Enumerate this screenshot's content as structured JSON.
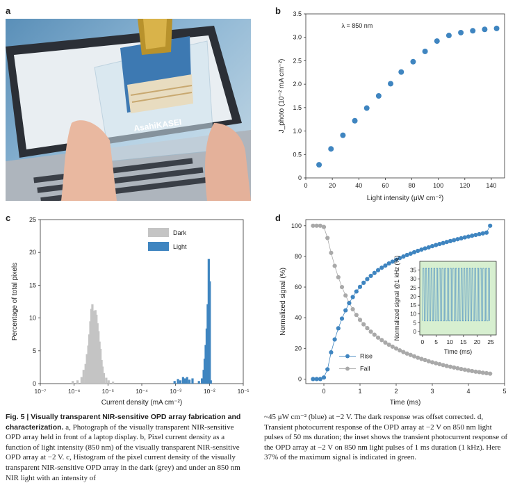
{
  "panels": {
    "a": "a",
    "b": "b",
    "c": "c",
    "d": "d"
  },
  "photo": {
    "logo_text": "AsahiKASEI"
  },
  "chart_data": [
    {
      "id": "b",
      "type": "scatter",
      "annotation": "λ = 850 nm",
      "xlabel": "Light intensity (μW cm⁻²)",
      "ylabel": "J_photo (10⁻² mA cm⁻²)",
      "xlim": [
        0,
        150
      ],
      "ylim": [
        0,
        3.5
      ],
      "xticks": [
        0,
        20,
        40,
        60,
        80,
        100,
        120,
        140
      ],
      "yticks": [
        0,
        0.5,
        1.0,
        1.5,
        2.0,
        2.5,
        3.0,
        3.5
      ],
      "ytick_labels": [
        "0",
        "0.5",
        "1.0",
        "1.5",
        "2.0",
        "2.5",
        "3.0",
        "3.5"
      ],
      "color": "#3f85c0",
      "x": [
        10,
        19,
        28,
        37,
        46,
        55,
        64,
        72,
        81,
        90,
        99,
        108,
        117,
        126,
        135,
        144
      ],
      "y": [
        0.28,
        0.62,
        0.91,
        1.22,
        1.49,
        1.75,
        2.01,
        2.26,
        2.48,
        2.7,
        2.92,
        3.04,
        3.1,
        3.14,
        3.17,
        3.19
      ]
    },
    {
      "id": "c",
      "type": "histogram",
      "xlabel": "Current density (mA cm⁻²)",
      "ylabel": "Percentage of total pixels",
      "xscale": "log",
      "xlim_exp": [
        -7,
        -1
      ],
      "ylim": [
        0,
        25
      ],
      "yticks": [
        0,
        5,
        10,
        15,
        20,
        25
      ],
      "xticks": [
        "10⁻⁷",
        "10⁻⁶",
        "10⁻⁵",
        "10⁻⁴",
        "10⁻³",
        "10⁻²",
        "10⁻¹"
      ],
      "legend": [
        {
          "name": "Dark",
          "color": "#c4c4c4"
        },
        {
          "name": "Light",
          "color": "#3f85c0"
        }
      ],
      "series": [
        {
          "name": "Dark",
          "color": "#c4c4c4",
          "bin_log10": [
            -6.04,
            -5.9,
            -5.78,
            -5.72,
            -5.66,
            -5.62,
            -5.58,
            -5.55,
            -5.52,
            -5.49,
            -5.46,
            -5.43,
            -5.4,
            -5.37,
            -5.34,
            -5.31,
            -5.28,
            -5.25,
            -5.22,
            -5.19,
            -5.16,
            -5.12,
            -5.05,
            -4.98,
            -4.85
          ],
          "values": [
            0.4,
            0.5,
            1.0,
            2.1,
            3.0,
            4.5,
            5.8,
            7.5,
            9.5,
            11.4,
            12.1,
            11.1,
            10.4,
            11.2,
            10.5,
            9.2,
            8.0,
            6.4,
            5.3,
            3.6,
            2.6,
            1.6,
            0.9,
            0.5,
            0.3
          ]
        },
        {
          "name": "Light",
          "color": "#3f85c0",
          "bin_log10": [
            -3.03,
            -2.93,
            -2.86,
            -2.78,
            -2.72,
            -2.66,
            -2.59,
            -2.5,
            -2.31,
            -2.22,
            -2.17,
            -2.14,
            -2.11,
            -2.08,
            -2.05,
            -2.02,
            -1.99,
            -1.96
          ],
          "values": [
            0.4,
            0.7,
            0.5,
            1.0,
            0.8,
            1.0,
            0.6,
            0.8,
            0.4,
            0.8,
            2.1,
            3.8,
            5.9,
            8.4,
            12.1,
            19.0,
            15.6,
            0.5
          ]
        }
      ]
    },
    {
      "id": "d",
      "type": "line",
      "xlabel": "Time (ms)",
      "ylabel": "Normalized signal (%)",
      "xlim": [
        -0.5,
        5
      ],
      "ylim": [
        -3,
        104
      ],
      "xticks": [
        0,
        1,
        2,
        3,
        4,
        5
      ],
      "yticks": [
        0,
        20,
        40,
        60,
        80,
        100
      ],
      "series": [
        {
          "name": "Rise",
          "color": "#3f85c0",
          "x": [
            -0.3,
            -0.2,
            -0.1,
            0.0,
            0.1,
            0.2,
            0.3,
            0.4,
            0.5,
            0.6,
            0.7,
            0.8,
            0.9,
            1.0,
            1.1,
            1.2,
            1.3,
            1.4,
            1.5,
            1.6,
            1.7,
            1.8,
            1.9,
            2.0,
            2.1,
            2.2,
            2.3,
            2.4,
            2.5,
            2.6,
            2.7,
            2.8,
            2.9,
            3.0,
            3.1,
            3.2,
            3.3,
            3.4,
            3.5,
            3.6,
            3.7,
            3.8,
            3.9,
            4.0,
            4.1,
            4.2,
            4.3,
            4.4,
            4.5,
            4.6
          ],
          "y": [
            0.0,
            0.0,
            0.0,
            1.0,
            6.3,
            17.4,
            25.8,
            33.1,
            39.4,
            44.8,
            49.5,
            53.5,
            57.1,
            60.1,
            62.8,
            65.2,
            67.3,
            69.2,
            71.0,
            72.6,
            74.0,
            75.4,
            76.6,
            77.8,
            78.9,
            79.9,
            80.9,
            81.8,
            82.7,
            83.6,
            84.4,
            85.2,
            85.9,
            86.7,
            87.4,
            88.1,
            88.7,
            89.4,
            90.0,
            90.6,
            91.2,
            91.8,
            92.4,
            92.9,
            93.5,
            94.0,
            94.5,
            95.0,
            95.5,
            100.0
          ]
        },
        {
          "name": "Fall",
          "color": "#a9a9a9",
          "x": [
            -0.3,
            -0.2,
            -0.1,
            0.0,
            0.1,
            0.2,
            0.3,
            0.4,
            0.5,
            0.6,
            0.7,
            0.8,
            0.9,
            1.0,
            1.1,
            1.2,
            1.3,
            1.4,
            1.5,
            1.6,
            1.7,
            1.8,
            1.9,
            2.0,
            2.1,
            2.2,
            2.3,
            2.4,
            2.5,
            2.6,
            2.7,
            2.8,
            2.9,
            3.0,
            3.1,
            3.2,
            3.3,
            3.4,
            3.5,
            3.6,
            3.7,
            3.8,
            3.9,
            4.0,
            4.1,
            4.2,
            4.3,
            4.4,
            4.5,
            4.6
          ],
          "y": [
            100.0,
            100.0,
            100.0,
            99.2,
            92.0,
            82.3,
            73.8,
            66.4,
            60.0,
            54.5,
            49.7,
            45.5,
            41.8,
            38.6,
            35.7,
            33.2,
            30.9,
            28.9,
            27.0,
            25.4,
            23.8,
            22.4,
            21.1,
            19.9,
            18.7,
            17.6,
            16.6,
            15.7,
            14.8,
            13.9,
            13.1,
            12.4,
            11.6,
            10.9,
            10.3,
            9.7,
            9.1,
            8.5,
            8.0,
            7.5,
            7.0,
            6.5,
            6.1,
            5.6,
            5.2,
            4.8,
            4.5,
            4.1,
            3.8,
            3.5
          ]
        }
      ],
      "inset": {
        "xlabel": "Time (ms)",
        "ylabel": "Normalized signal @1 kHz (%)",
        "xlim": [
          -1,
          27
        ],
        "ylim": [
          -2,
          40
        ],
        "xticks": [
          0,
          5,
          10,
          15,
          20,
          25
        ],
        "yticks": [
          0,
          5,
          10,
          15,
          20,
          25,
          30,
          35
        ],
        "cycles": 25,
        "period_ms": 1,
        "signal_min": 6,
        "signal_max": 36,
        "color": "#3f85c0",
        "highlight_color": "#d7efd0"
      }
    }
  ],
  "caption": {
    "left_bold": "Fig. 5 | Visually transparent NIR-sensitive OPD array fabrication and characterization.",
    "left_a": "a, Photograph of the visually transparent NIR-sensitive OPD array held in front of a laptop display.",
    "left_b": "b, Pixel current density as a function of light intensity (850 nm) of the visually transparent NIR-sensitive OPD array at −2 V.",
    "left_c": "c, Histogram of the pixel current density of the visually transparent NIR-sensitive OPD array in the dark (grey) and under an 850 nm NIR light with an intensity of",
    "right": "~45 μW cm⁻² (blue) at −2 V. The dark response was offset corrected. d, Transient photocurrent response of the OPD array at −2 V on 850 nm light pulses of 50 ms duration; the inset shows the transient photocurrent response of the OPD array at −2 V on 850 nm light pulses of 1 ms duration (1 kHz). Here 37% of the maximum signal is indicated in green."
  }
}
